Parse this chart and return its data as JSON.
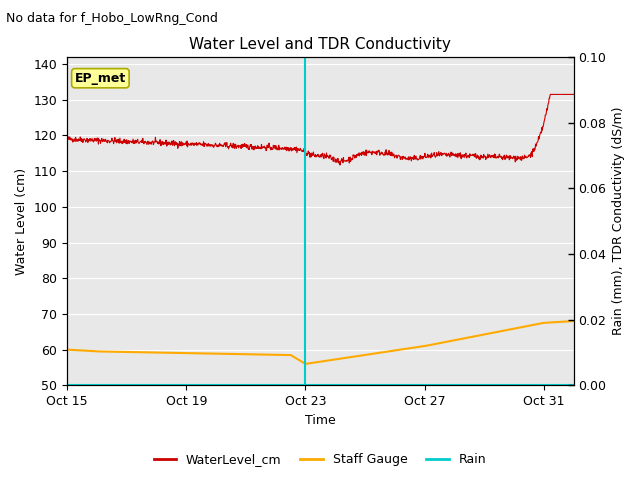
{
  "title": "Water Level and TDR Conductivity",
  "subtitle": "No data for f_Hobo_LowRng_Cond",
  "xlabel": "Time",
  "ylabel_left": "Water Level (cm)",
  "ylabel_right": "Rain (mm), TDR Conductivity (dS/m)",
  "ylim_left": [
    50,
    142
  ],
  "ylim_right": [
    0.0,
    0.1
  ],
  "yticks_left": [
    50,
    60,
    70,
    80,
    90,
    100,
    110,
    120,
    130,
    140
  ],
  "yticks_right": [
    0.0,
    0.02,
    0.04,
    0.06,
    0.08,
    0.1
  ],
  "xtick_labels": [
    "Oct 15",
    "Oct 19",
    "Oct 23",
    "Oct 27",
    "Oct 31"
  ],
  "xtick_pos": [
    0,
    4,
    8,
    12,
    16
  ],
  "xlim": [
    0,
    17
  ],
  "bg_color": "#e8e8e8",
  "fig_bg_color": "#ffffff",
  "water_level_color": "#cc0000",
  "staff_gauge_color": "#ffaa00",
  "rain_color": "#00cccc",
  "vline_color": "#00cccc",
  "vline_x": 8.0,
  "ep_met_box_color": "#ffff99",
  "ep_met_box_edge": "#aaaa00",
  "annotation_ep_met": "EP_met",
  "title_fontsize": 11,
  "subtitle_fontsize": 9,
  "axis_label_fontsize": 9,
  "tick_fontsize": 9,
  "legend_fontsize": 9
}
